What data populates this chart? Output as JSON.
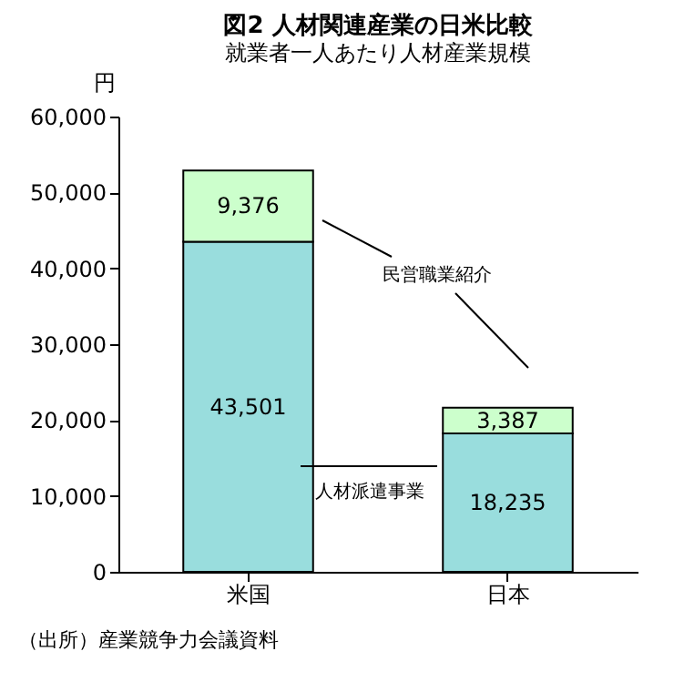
{
  "chart_data": {
    "type": "bar",
    "stacked": true,
    "title": "図2 人材関連産業の日米比較",
    "subtitle": "就業者一人あたり人材産業規模",
    "ylabel": "円",
    "categories": [
      "米国",
      "日本"
    ],
    "series": [
      {
        "name": "人材派遣事業",
        "color": "#99dddd",
        "values": [
          43501,
          18235
        ],
        "value_labels": [
          "43,501",
          "18,235"
        ]
      },
      {
        "name": "民営職業紹介",
        "color": "#ccffcc",
        "values": [
          9376,
          3387
        ],
        "value_labels": [
          "9,376",
          "3,387"
        ]
      }
    ],
    "ylim": [
      0,
      60000
    ],
    "yticks": [
      {
        "value": 0,
        "label": "0"
      },
      {
        "value": 10000,
        "label": "10,000"
      },
      {
        "value": 20000,
        "label": "20,000"
      },
      {
        "value": 30000,
        "label": "30,000"
      },
      {
        "value": 40000,
        "label": "40,000"
      },
      {
        "value": 50000,
        "label": "50,000"
      },
      {
        "value": 60000,
        "label": "60,000"
      }
    ],
    "annotations": [
      "（出所）産業競争力会議資料"
    ]
  }
}
